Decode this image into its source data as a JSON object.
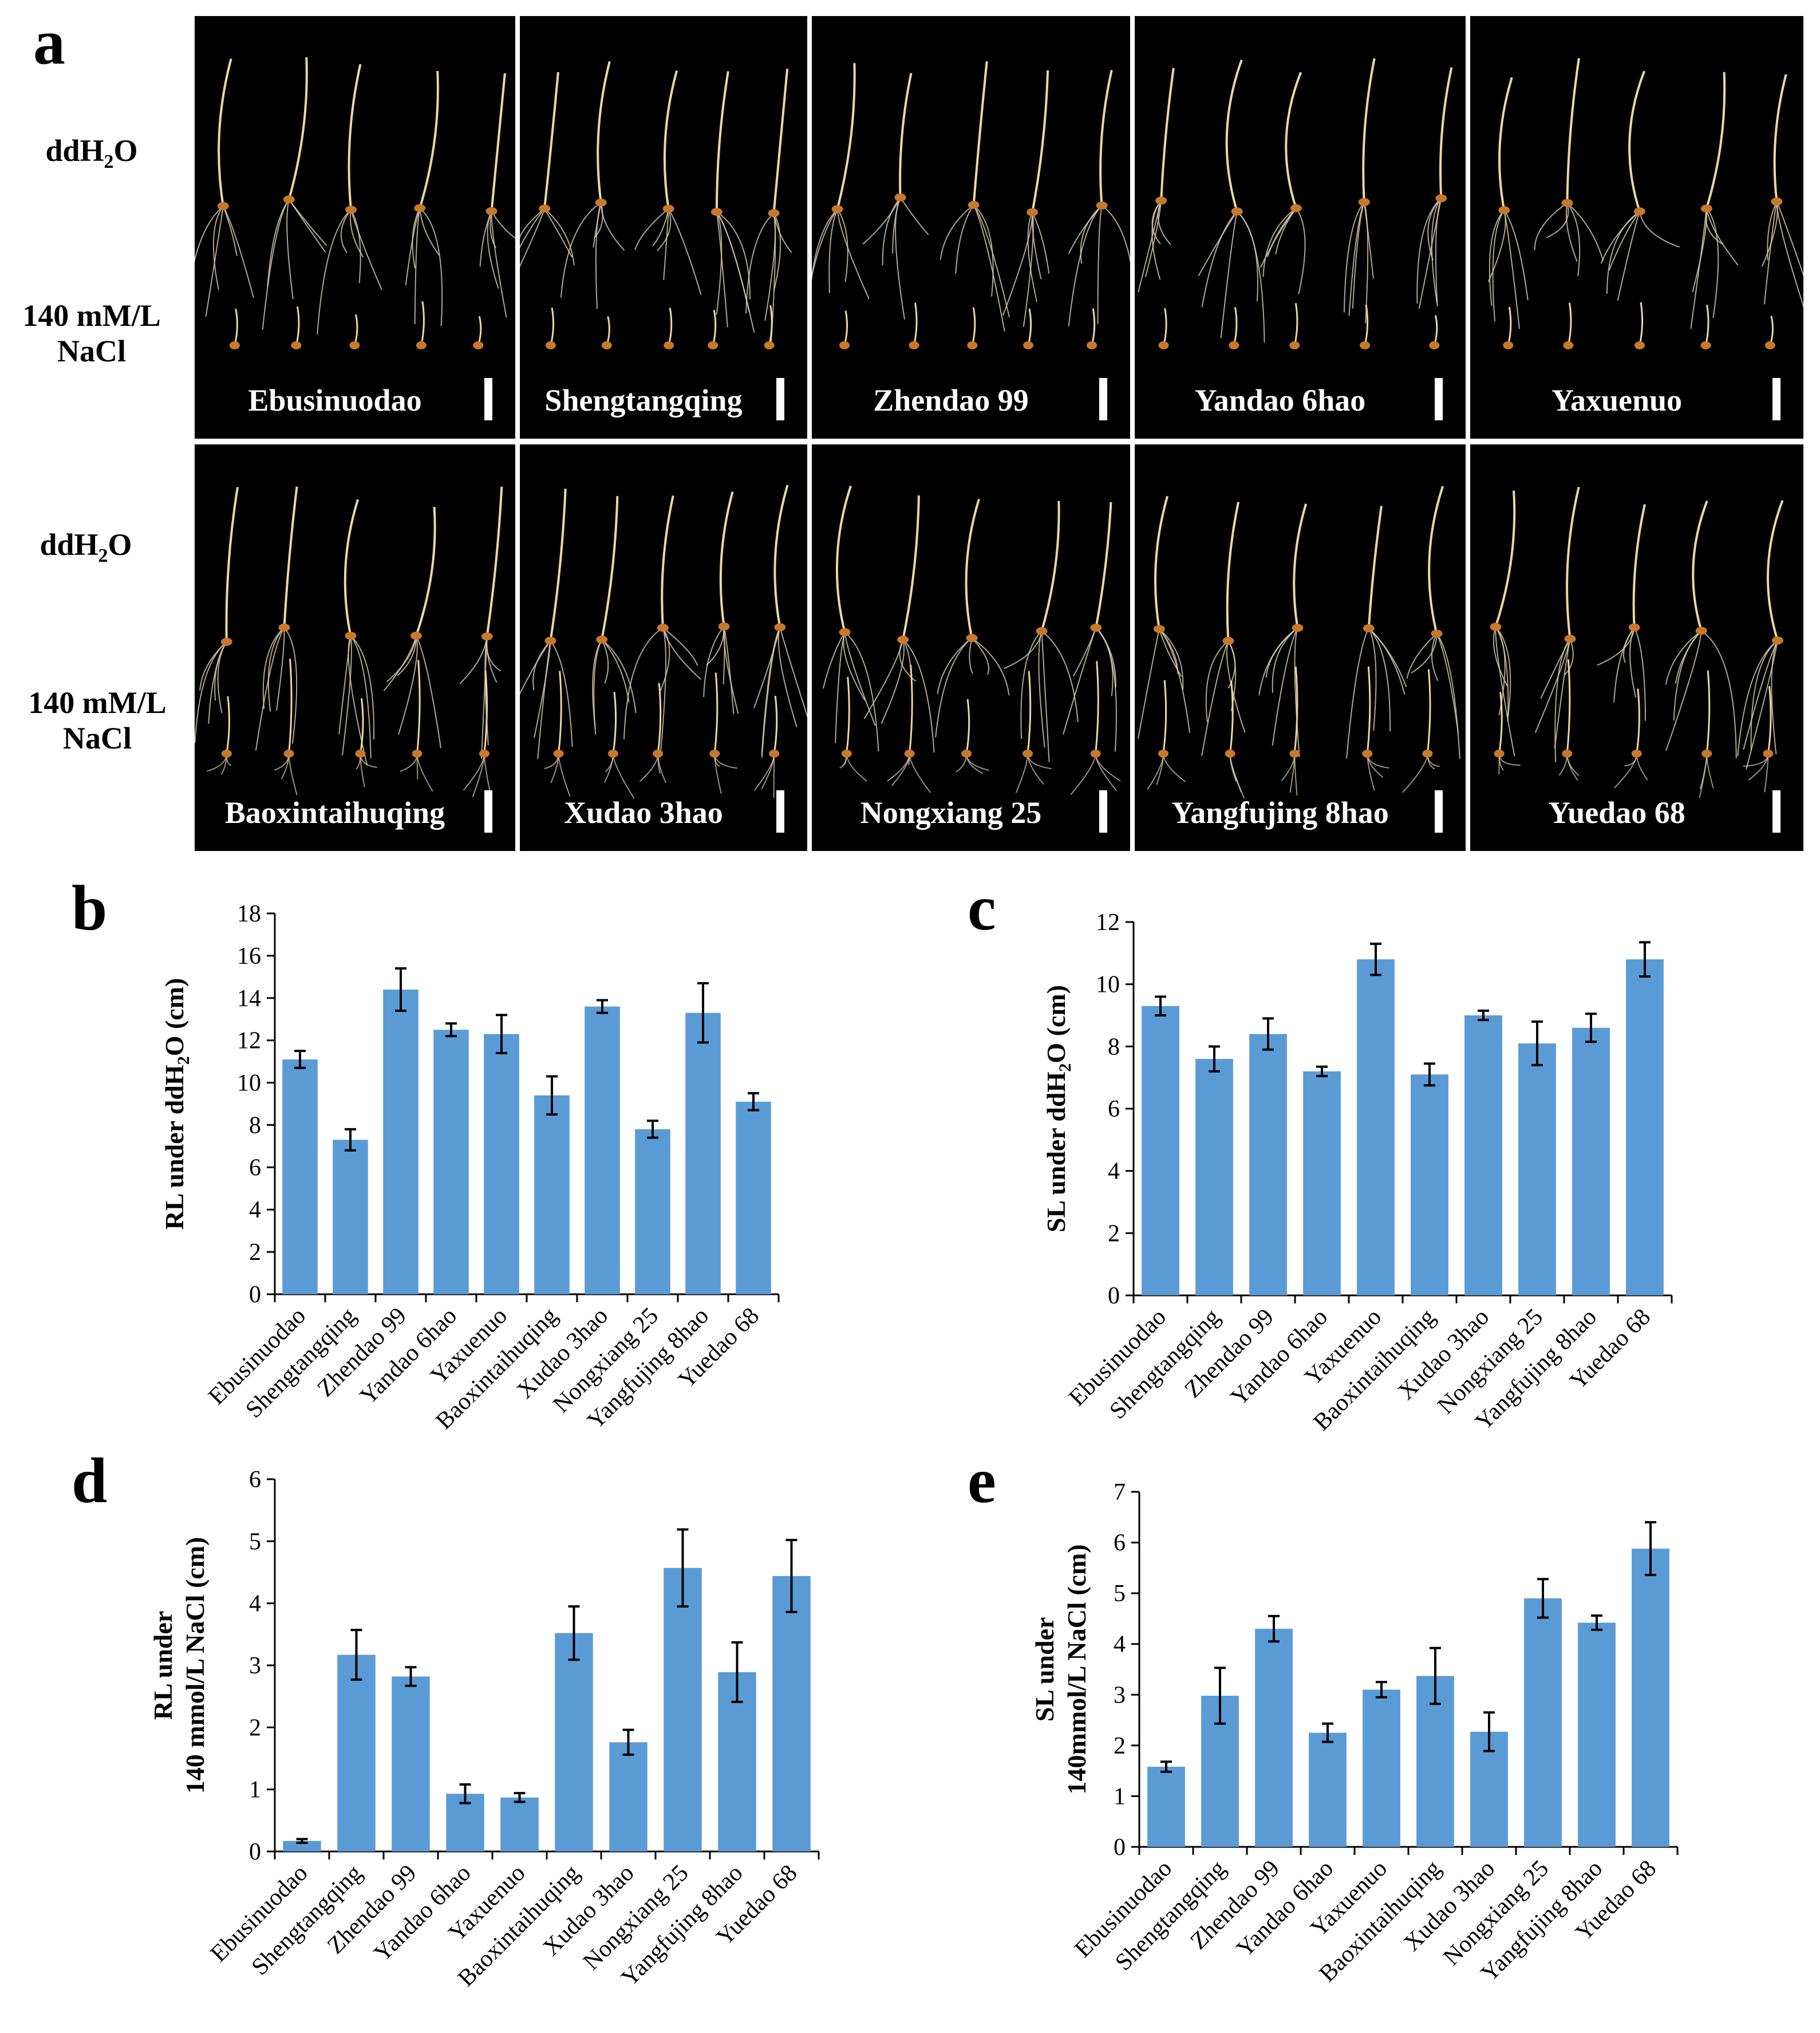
{
  "panel_a": {
    "letter": "a",
    "row1_labels": {
      "control": "ddH",
      "control_sub": "2",
      "control_tail": "O",
      "salt_line1": "140 mM/L",
      "salt_line2": "NaCl"
    },
    "row2_labels": {
      "control": "ddH",
      "control_sub": "2",
      "control_tail": "O",
      "salt_line1": "140 mM/L",
      "salt_line2": "NaCl"
    },
    "varieties_row1": [
      "Ebusinuodao",
      "Shengtangqing",
      "Zhendao 99",
      "Yandao 6hao",
      "Yaxuenuo"
    ],
    "varieties_row2": [
      "Baoxintaihuqing",
      "Xudao 3hao",
      "Nongxiang 25",
      "Yangfujing 8hao",
      "Yuedao 68"
    ],
    "colors": {
      "background": "#000000",
      "seedling": "#e8d9a0",
      "root": "#d9cfb8",
      "seed": "#c8782a"
    }
  },
  "chart_data": [
    {
      "id": "b",
      "letter": "b",
      "type": "bar",
      "title": "",
      "ylabel": "RL under ddH2O (cm)",
      "ylabel_parts": {
        "pre": "RL under ddH",
        "sub": "2",
        "post": "O (cm)"
      },
      "ylabel2": "",
      "categories": [
        "Ebusinuodao",
        "Shengtangqing",
        "Zhendao 99",
        "Yandao 6hao",
        "Yaxuenuo",
        "Baoxintaihuqing",
        "Xudao 3hao",
        "Nongxiang 25",
        "Yangfujing 8hao",
        "Yuedao 68"
      ],
      "values": [
        11.1,
        7.3,
        14.4,
        12.5,
        12.3,
        9.4,
        13.6,
        7.8,
        13.3,
        9.1
      ],
      "errors": [
        0.4,
        0.5,
        1.0,
        0.3,
        0.9,
        0.9,
        0.3,
        0.4,
        1.4,
        0.4
      ],
      "ylim": [
        0,
        18
      ],
      "yticks": [
        0,
        2,
        4,
        6,
        8,
        10,
        12,
        14,
        16,
        18
      ],
      "bar_color": "#5b9bd5"
    },
    {
      "id": "c",
      "letter": "c",
      "type": "bar",
      "title": "",
      "ylabel": "SL under ddH2O (cm)",
      "ylabel_parts": {
        "pre": "SL under ddH",
        "sub": "2",
        "post": "O (cm)"
      },
      "ylabel2": "",
      "categories": [
        "Ebusinuodao",
        "Shengtangqing",
        "Zhendao 99",
        "Yandao 6hao",
        "Yaxuenuo",
        "Baoxintaihuqing",
        "Xudao 3hao",
        "Nongxiang 25",
        "Yangfujing 8hao",
        "Yuedao 68"
      ],
      "values": [
        9.3,
        7.6,
        8.4,
        7.2,
        10.8,
        7.1,
        9.0,
        8.1,
        8.6,
        10.8
      ],
      "errors": [
        0.3,
        0.4,
        0.5,
        0.15,
        0.5,
        0.35,
        0.15,
        0.7,
        0.45,
        0.55
      ],
      "ylim": [
        0,
        12
      ],
      "yticks": [
        0,
        2,
        4,
        6,
        8,
        10,
        12
      ],
      "bar_color": "#5b9bd5"
    },
    {
      "id": "d",
      "letter": "d",
      "type": "bar",
      "title": "",
      "ylabel": "RL under",
      "ylabel_parts": {
        "pre": "RL under",
        "sub": "",
        "post": ""
      },
      "ylabel2": "140 mmol/L NaCl (cm)",
      "categories": [
        "Ebusinuodao",
        "Shengtangqing",
        "Zhendao 99",
        "Yandao 6hao",
        "Yaxuenuo",
        "Baoxintaihuqing",
        "Xudao 3hao",
        "Nongxiang 25",
        "Yangfujing 8hao",
        "Yuedao 68"
      ],
      "values": [
        0.17,
        3.17,
        2.82,
        0.93,
        0.87,
        3.52,
        1.76,
        4.57,
        2.89,
        4.44
      ],
      "errors": [
        0.03,
        0.4,
        0.15,
        0.15,
        0.07,
        0.43,
        0.2,
        0.62,
        0.48,
        0.58
      ],
      "ylim": [
        0,
        6
      ],
      "yticks": [
        0,
        1,
        2,
        3,
        4,
        5,
        6
      ],
      "bar_color": "#5b9bd5"
    },
    {
      "id": "e",
      "letter": "e",
      "type": "bar",
      "title": "",
      "ylabel": "SL under",
      "ylabel_parts": {
        "pre": "SL under",
        "sub": "",
        "post": ""
      },
      "ylabel2": "140mmol/L NaCl (cm)",
      "categories": [
        "Ebusinuodao",
        "Shengtangqing",
        "Zhendao 99",
        "Yandao 6hao",
        "Yaxuenuo",
        "Baoxintaihuqing",
        "Xudao 3hao",
        "Nongxiang 25",
        "Yangfujing 8hao",
        "Yuedao 68"
      ],
      "values": [
        1.58,
        2.98,
        4.3,
        2.25,
        3.1,
        3.37,
        2.27,
        4.9,
        4.42,
        5.88
      ],
      "errors": [
        0.1,
        0.55,
        0.25,
        0.18,
        0.15,
        0.55,
        0.38,
        0.38,
        0.14,
        0.52
      ],
      "ylim": [
        0,
        7
      ],
      "yticks": [
        0,
        1,
        2,
        3,
        4,
        5,
        6,
        7
      ],
      "bar_color": "#5b9bd5"
    }
  ]
}
